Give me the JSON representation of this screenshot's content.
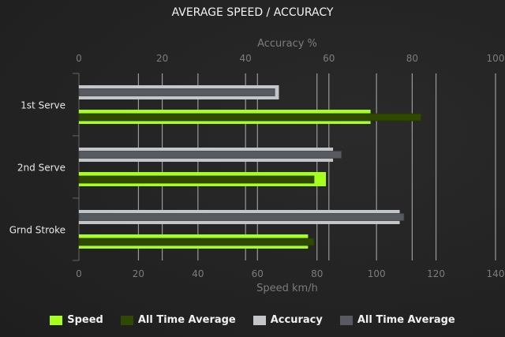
{
  "chart_data": {
    "type": "bar",
    "orientation": "horizontal",
    "title": "AVERAGE SPEED / ACCURACY",
    "categories": [
      "1st Serve",
      "2nd Serve",
      "Grnd Stroke"
    ],
    "x_top": {
      "label": "Accuracy %",
      "range": [
        0,
        100
      ],
      "ticks": [
        0,
        20,
        40,
        60,
        80,
        100
      ]
    },
    "x_bottom": {
      "label": "Speed km/h",
      "range": [
        0,
        140
      ],
      "ticks": [
        0,
        20,
        40,
        60,
        80,
        100,
        120,
        140
      ]
    },
    "grid": true,
    "legend_position": "bottom",
    "series": [
      {
        "name": "Speed",
        "axis": "bottom",
        "color": "#a6ff1f",
        "values": [
          98,
          83,
          77
        ]
      },
      {
        "name": "All Time Average",
        "axis": "bottom",
        "color": "#2f4a00",
        "values": [
          115,
          79,
          79
        ]
      },
      {
        "name": "Accuracy",
        "axis": "top",
        "color": "#c3c6c8",
        "values": [
          48,
          61,
          77
        ]
      },
      {
        "name": "All Time Average",
        "axis": "top",
        "color": "#575b61",
        "values": [
          47,
          63,
          78
        ]
      }
    ]
  }
}
